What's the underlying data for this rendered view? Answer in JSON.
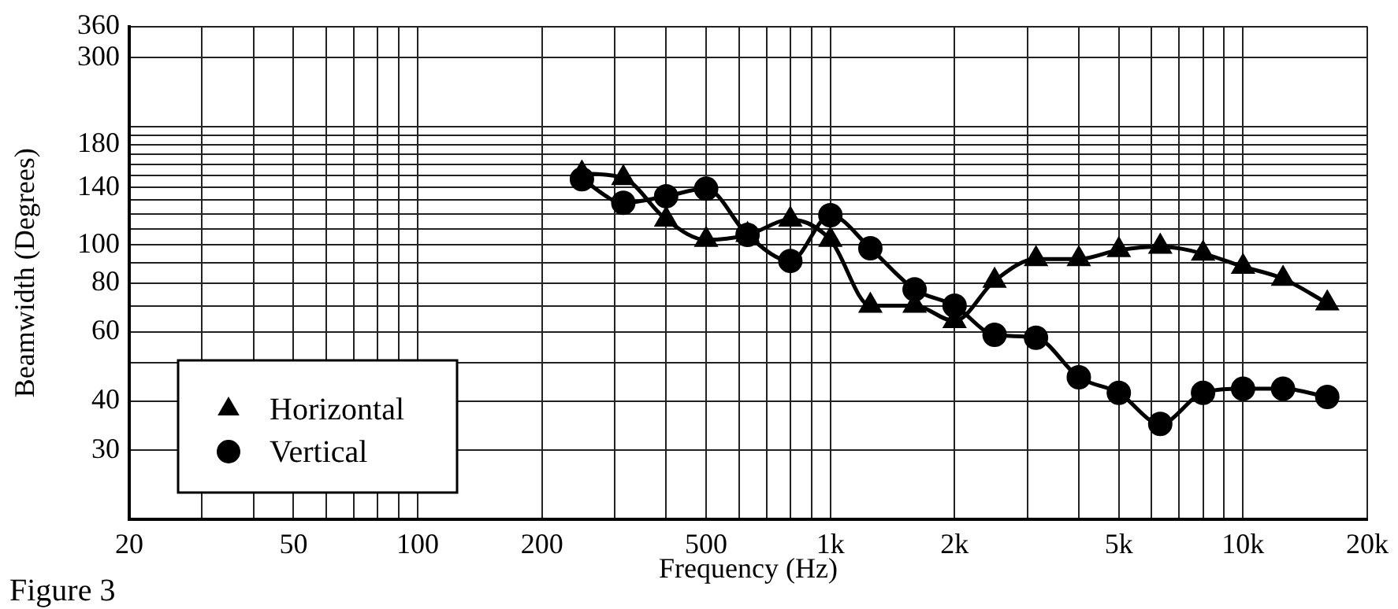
{
  "chart_data": {
    "type": "line",
    "xlabel": "Frequency (Hz)",
    "ylabel": "Beamwidth (Degrees)",
    "annotations": [
      "Figure 3"
    ],
    "x": [
      250,
      315,
      400,
      500,
      630,
      800,
      1000,
      1250,
      1600,
      2000,
      2500,
      3150,
      4000,
      5000,
      6300,
      8000,
      10000,
      12500,
      16000
    ],
    "log": "xy",
    "xlim": [
      20,
      20000
    ],
    "ylim": [
      20,
      360
    ],
    "xticks": [
      20,
      {
        "value": 30,
        "label": null
      },
      {
        "value": 40,
        "label": null
      },
      50,
      {
        "value": 60,
        "label": null
      },
      {
        "value": 70,
        "label": null
      },
      {
        "value": 80,
        "label": null
      },
      {
        "value": 90,
        "label": null
      },
      100,
      200,
      {
        "value": 300,
        "label": null
      },
      {
        "value": 400,
        "label": null
      },
      500,
      {
        "value": 600,
        "label": null
      },
      {
        "value": 700,
        "label": null
      },
      {
        "value": 800,
        "label": null
      },
      {
        "value": 900,
        "label": null
      },
      {
        "value": 1000,
        "label": "1k"
      },
      {
        "value": 2000,
        "label": "2k"
      },
      {
        "value": 3000,
        "label": null
      },
      {
        "value": 4000,
        "label": null
      },
      {
        "value": 5000,
        "label": "5k"
      },
      {
        "value": 6000,
        "label": null
      },
      {
        "value": 7000,
        "label": null
      },
      {
        "value": 8000,
        "label": null
      },
      {
        "value": 9000,
        "label": null
      },
      {
        "value": 10000,
        "label": "10k"
      },
      {
        "value": 20000,
        "label": "20k"
      }
    ],
    "yticks": [
      30,
      40,
      {
        "value": 50,
        "label": null
      },
      60,
      {
        "value": 70,
        "label": null
      },
      80,
      {
        "value": 90,
        "label": null
      },
      100,
      {
        "value": 110,
        "label": null
      },
      {
        "value": 120,
        "label": null
      },
      {
        "value": 130,
        "label": null
      },
      140,
      {
        "value": 150,
        "label": null
      },
      {
        "value": 160,
        "label": null
      },
      {
        "value": 170,
        "label": null
      },
      180,
      {
        "value": 190,
        "label": null
      },
      {
        "value": 200,
        "label": null
      },
      300,
      360
    ],
    "grid": true,
    "legend": "bottom left",
    "series": [
      {
        "name": "Horizontal",
        "color": "#000000",
        "marker": "triangle",
        "values": [
          152,
          148,
          116,
          103,
          106,
          116,
          103,
          70,
          70,
          64,
          81,
          92,
          92,
          97,
          99,
          95,
          88,
          82,
          71
        ]
      },
      {
        "name": "Vertical",
        "color": "#000000",
        "marker": "circle",
        "values": [
          147,
          128,
          133,
          139,
          106,
          91,
          119,
          98,
          77,
          70,
          59,
          58,
          46,
          42,
          35,
          42,
          43,
          43,
          41
        ]
      }
    ]
  }
}
